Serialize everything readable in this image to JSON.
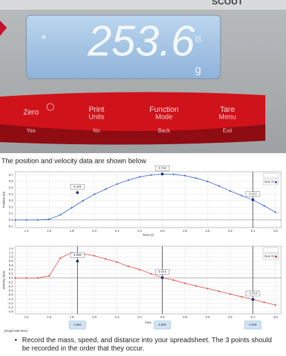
{
  "scale": {
    "brand": "SCOUT",
    "indicator": "*",
    "reading": "253.6",
    "unit_upper": "G",
    "unit_lower": "g",
    "buttons": [
      {
        "label": "Zero",
        "sub": null,
        "alt": "Yes"
      },
      {
        "label": "Print",
        "sub": "Units",
        "alt": "No"
      },
      {
        "label": "Function",
        "sub": "Mode",
        "alt": "Back"
      },
      {
        "label": "Tare",
        "sub": "Menu",
        "alt": "Exit"
      }
    ]
  },
  "intro": "The position and velocity data are shown below",
  "chart_data": [
    {
      "type": "line",
      "x_label": "Time (s)",
      "y_label": "Position (m)",
      "x": [
        1.3,
        1.4,
        1.5,
        1.6,
        1.7,
        1.8,
        1.9,
        2.0,
        2.1,
        2.2,
        2.3,
        2.4,
        2.5,
        2.6,
        2.7,
        2.8,
        2.9,
        3.0,
        3.1,
        3.2,
        3.3,
        3.4,
        3.5,
        3.6
      ],
      "series": [
        {
          "name": "Run #1",
          "color": "#2a5bd7",
          "values": [
            0,
            0,
            0,
            0.01,
            0.08,
            0.19,
            0.3,
            0.4,
            0.48,
            0.56,
            0.62,
            0.67,
            0.7,
            0.715,
            0.71,
            0.69,
            0.65,
            0.6,
            0.53,
            0.45,
            0.38,
            0.313,
            0.22,
            0.12
          ]
        }
      ],
      "xlim": [
        1.3,
        3.65
      ],
      "ylim": [
        -0.12,
        0.75
      ],
      "xticks": [
        1.4,
        1.6,
        1.8,
        {
          "value": 2,
          "label": "2.0"
        },
        2.2,
        2.4,
        2.6,
        2.8,
        {
          "value": 3,
          "label": "3.0"
        },
        3.2,
        3.4,
        3.6
      ],
      "yticks": [
        0.7,
        0.6,
        0.5,
        0.4,
        0.3,
        0.2,
        0.1,
        {
          "value": 0,
          "label": "0.0"
        },
        -0.1
      ],
      "grid": true,
      "legend": "top-right",
      "annotations": [
        {
          "x": 1.85,
          "value": 0.426
        },
        {
          "x": 2.6,
          "value": 0.715
        },
        {
          "x": 3.4,
          "value": 0.313
        }
      ],
      "cursors": [
        3.4
      ]
    },
    {
      "type": "line",
      "x_label": "Time",
      "y_label": "Velocity (m/s)",
      "caption": "(Graph title here)",
      "x": [
        1.3,
        1.4,
        1.5,
        1.6,
        1.7,
        1.8,
        1.9,
        2.0,
        2.1,
        2.2,
        2.3,
        2.4,
        2.5,
        2.6,
        2.7,
        2.8,
        2.9,
        3.0,
        3.1,
        3.2,
        3.3,
        3.4,
        3.5,
        3.6
      ],
      "series": [
        {
          "name": "Run #1",
          "color": "#e0403a",
          "values": [
            0,
            0,
            0,
            0.1,
            0.95,
            1.2,
            1.15,
            1.05,
            0.9,
            0.75,
            0.55,
            0.4,
            0.2,
            0.013,
            -0.1,
            -0.25,
            -0.38,
            -0.5,
            -0.63,
            -0.76,
            -0.89,
            -1.014,
            -1.15,
            -1.28
          ]
        }
      ],
      "xlim": [
        1.3,
        3.65
      ],
      "ylim": [
        -1.7,
        1.5
      ],
      "xticks": [
        1.4,
        1.6,
        1.8,
        {
          "value": 2,
          "label": "2.0"
        },
        2.2,
        2.4,
        2.6,
        2.8,
        {
          "value": 3,
          "label": "3.0"
        },
        3.2,
        3.4,
        3.6
      ],
      "yticks": [
        1.4,
        1.2,
        {
          "value": 1,
          "label": "1.0"
        },
        0.8,
        0.6,
        0.4,
        0.2,
        {
          "value": 0,
          "label": "0.0"
        },
        -0.2,
        -0.4,
        -0.6,
        -0.8,
        {
          "value": -1,
          "label": "-1.0"
        },
        -1.2,
        -1.4,
        -1.6
      ],
      "grid": true,
      "legend": "top-right",
      "annotations": [
        {
          "x": 1.85,
          "value": 0.8,
          "label": "0.800"
        },
        {
          "x": 2.6,
          "value": 0.013
        },
        {
          "x": 3.4,
          "value": -1.014
        }
      ],
      "cursors": [
        {
          "value": 1.85,
          "label": "1.850"
        },
        {
          "value": 2.6,
          "label": "2.600"
        },
        {
          "value": 3.4,
          "label": "3.400"
        }
      ]
    }
  ],
  "bullets": [
    "Record the mass, speed, and distance into your spreadsheet. The 3 points should be recorded in the order that they occur."
  ]
}
